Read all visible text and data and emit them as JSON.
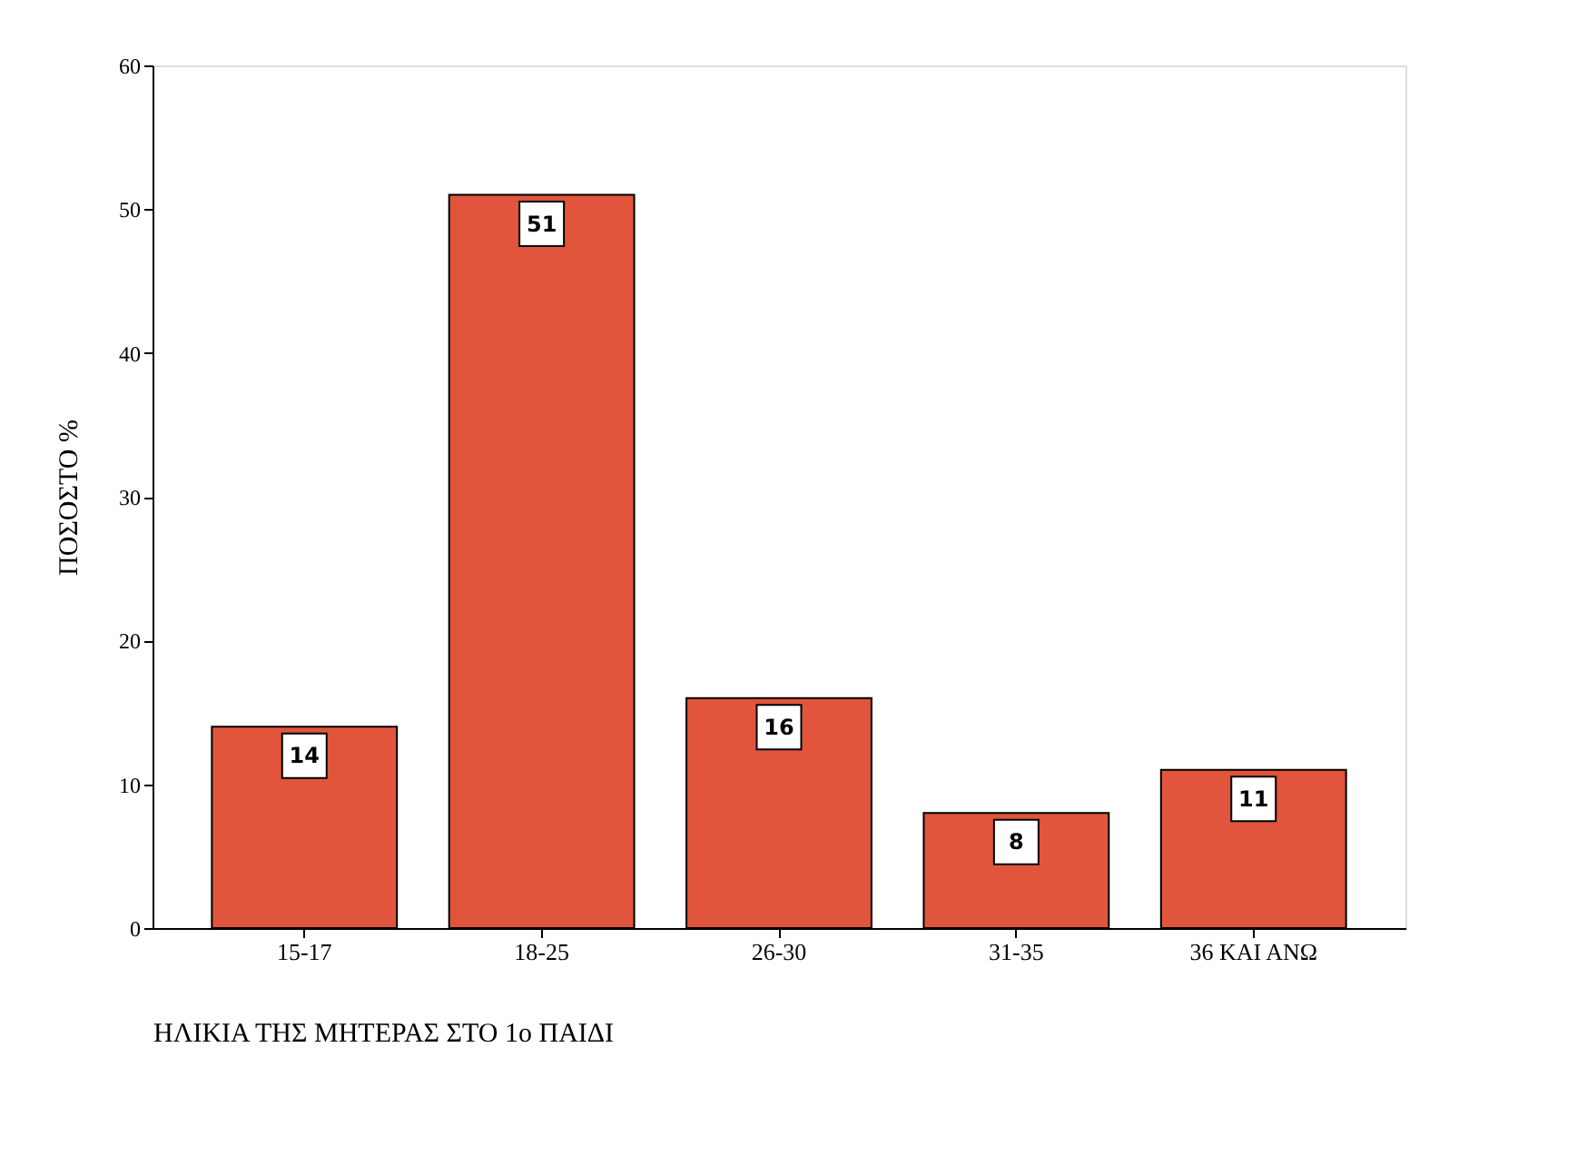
{
  "chart_data": {
    "type": "bar",
    "categories": [
      "15-17",
      "18-25",
      "26-30",
      "31-35",
      "36 ΚΑΙ ΑΝΩ"
    ],
    "values": [
      14,
      51,
      16,
      8,
      11
    ],
    "color": "#e0553b",
    "xlabel": "ΗΛΙΚΙΑ ΤΗΣ ΜΗΤΕΡΑΣ ΣΤΟ 1ο ΠΑΙΔΙ",
    "ylabel": "ΠΟΣΟΣΤΟ %",
    "ylim": [
      0,
      60
    ],
    "yticks": [
      0,
      10,
      20,
      30,
      40,
      50,
      60
    ],
    "data_labels": true,
    "grid": false
  }
}
